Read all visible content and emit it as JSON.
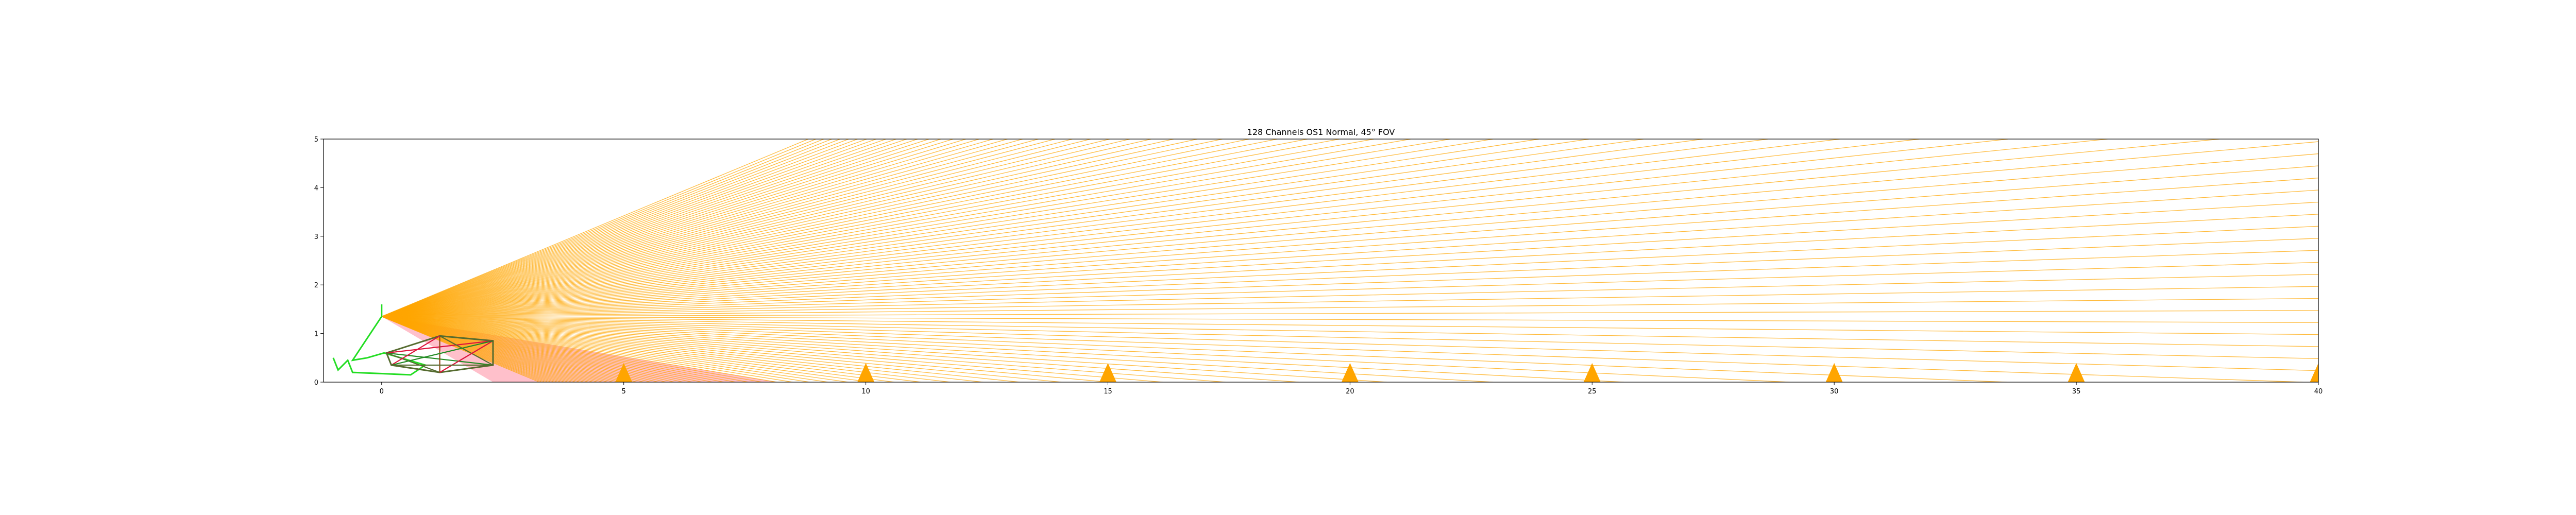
{
  "chart_data": {
    "type": "line",
    "title": "128 Channels OS1 Normal, 45° FOV",
    "xlabel": "",
    "ylabel": "",
    "xlim": [
      -1.2,
      40
    ],
    "ylim": [
      0,
      5
    ],
    "xticks": [
      0,
      5,
      10,
      15,
      20,
      25,
      30,
      35,
      40
    ],
    "yticks": [
      0,
      1,
      2,
      3,
      4,
      5
    ],
    "grid": false,
    "sensor": {
      "x": 0,
      "y": 1.35,
      "fov_deg": 45,
      "channels": 128,
      "upper_angle_deg": 22.5,
      "lower_angle_deg": -22.5
    },
    "beam_color": "#FFA500",
    "occluded_region_color": "#FFC0CB",
    "occluded_region": [
      [
        0,
        1.35
      ],
      [
        8.2,
        0
      ],
      [
        2.3,
        0
      ]
    ],
    "cone_markers": {
      "x": [
        5,
        10,
        15,
        20,
        25,
        30,
        35,
        40
      ],
      "height": 0.38,
      "width": 0.34,
      "color": "#FFA500"
    },
    "vehicle_outline": {
      "color": "#22DD22",
      "points": [
        [
          -1.0,
          0.5
        ],
        [
          -0.9,
          0.25
        ],
        [
          -0.7,
          0.45
        ],
        [
          -0.6,
          0.2
        ],
        [
          0.6,
          0.15
        ],
        [
          0.9,
          0.35
        ],
        [
          0.05,
          0.6
        ],
        [
          -0.3,
          0.5
        ],
        [
          -0.6,
          0.45
        ],
        [
          0.0,
          1.35
        ],
        [
          0.0,
          1.6
        ]
      ]
    },
    "chassis_frame": {
      "colors": [
        "#556B2F",
        "#8B4513",
        "#DC143C",
        "#228B22"
      ],
      "outline": [
        [
          0.1,
          0.6
        ],
        [
          1.2,
          0.95
        ],
        [
          2.3,
          0.85
        ],
        [
          2.3,
          0.35
        ],
        [
          1.2,
          0.2
        ],
        [
          0.2,
          0.35
        ]
      ]
    }
  }
}
